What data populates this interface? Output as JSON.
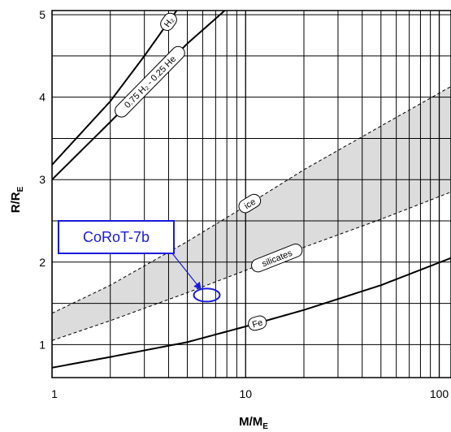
{
  "chart_data": {
    "type": "line",
    "xlabel": "M/M",
    "xlabel_sub": "E",
    "ylabel": "R/R",
    "ylabel_sub": "E",
    "xscale": "log",
    "xlim": [
      1,
      115
    ],
    "ylim": [
      0.6,
      5.05
    ],
    "x_ticks": [
      1,
      10,
      100
    ],
    "x_tick_labels": [
      "1",
      "10",
      "100"
    ],
    "y_ticks": [
      1,
      2,
      3,
      4,
      5
    ],
    "y_tick_labels": [
      "1",
      "2",
      "3",
      "4",
      "5"
    ],
    "grid": true,
    "band": {
      "name": "silicates-ice region",
      "color": "#dcdcdc",
      "upper": {
        "x": [
          1,
          2,
          5,
          10,
          20,
          50,
          115
        ],
        "y": [
          1.38,
          1.72,
          2.25,
          2.68,
          3.12,
          3.65,
          4.13
        ]
      },
      "lower": {
        "x": [
          1,
          2,
          5,
          10,
          20,
          50,
          115
        ],
        "y": [
          1.05,
          1.29,
          1.63,
          1.9,
          2.18,
          2.52,
          2.85
        ]
      }
    },
    "series": [
      {
        "name": "H₂",
        "x": [
          1,
          2,
          3,
          4.4
        ],
        "y": [
          3.18,
          3.95,
          4.5,
          5.05
        ],
        "label_at": 4.0
      },
      {
        "name": "0.75 H₂ - 0.25 He",
        "x": [
          1,
          2,
          3,
          5,
          7.8
        ],
        "y": [
          3.0,
          3.7,
          4.12,
          4.65,
          5.05
        ],
        "label_at": 3.2
      },
      {
        "name": "ice",
        "x": [
          1,
          2,
          5,
          10,
          20,
          50,
          115
        ],
        "y": [
          1.38,
          1.72,
          2.25,
          2.68,
          3.12,
          3.65,
          4.13
        ],
        "dashed": true,
        "label_at": 10.5
      },
      {
        "name": "silicates",
        "x": [
          1,
          2,
          5,
          10,
          20,
          50,
          115
        ],
        "y": [
          1.05,
          1.29,
          1.63,
          1.9,
          2.18,
          2.52,
          2.85
        ],
        "dashed": true,
        "label_at": 14.5
      },
      {
        "name": "Fe",
        "x": [
          1,
          2,
          5,
          10,
          20,
          50,
          115
        ],
        "y": [
          0.72,
          0.85,
          1.03,
          1.22,
          1.42,
          1.72,
          2.05
        ],
        "label_at": 11.5
      }
    ],
    "annotation": {
      "label": "CoRoT-7b",
      "color": "#1a1adb",
      "marker": {
        "x": 6.3,
        "y": 1.6,
        "type": "ellipse"
      }
    }
  }
}
